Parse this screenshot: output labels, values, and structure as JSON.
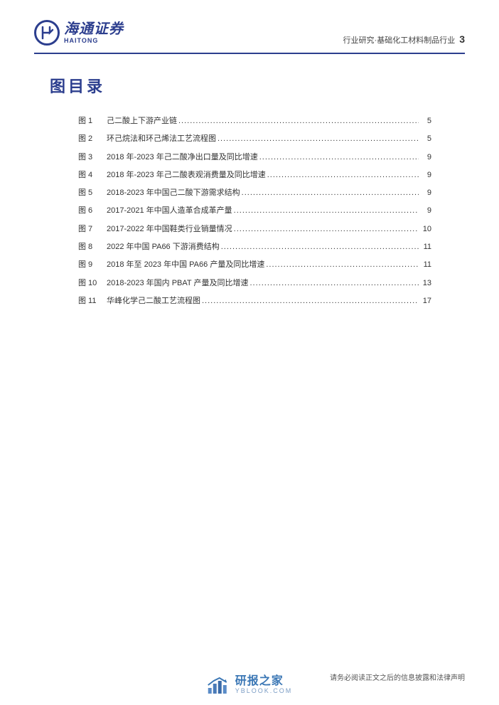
{
  "header": {
    "logo_cn": "海通证券",
    "logo_en": "HAITONG",
    "category": "行业研究·基础化工材料制品行业",
    "page_number": "3"
  },
  "title": "图目录",
  "toc": [
    {
      "label": "图 1",
      "title": "己二酸上下游产业链",
      "page": "5"
    },
    {
      "label": "图 2",
      "title": "环己烷法和环己烯法工艺流程图",
      "page": "5"
    },
    {
      "label": "图 3",
      "title": "2018 年-2023 年己二酸净出口量及同比增速",
      "page": "9"
    },
    {
      "label": "图 4",
      "title": "2018 年-2023 年己二酸表观消费量及同比增速",
      "page": "9"
    },
    {
      "label": "图 5",
      "title": "2018-2023 年中国己二酸下游需求结构",
      "page": "9"
    },
    {
      "label": "图 6",
      "title": "2017-2021 年中国人造革合成革产量",
      "page": "9"
    },
    {
      "label": "图 7",
      "title": "2017-2022 年中国鞋类行业销量情况",
      "page": "10"
    },
    {
      "label": "图 8",
      "title": "2022 年中国 PA66 下游消费结构",
      "page": "11"
    },
    {
      "label": "图 9",
      "title": "2018 年至 2023 年中国 PA66 产量及同比增速",
      "page": "11"
    },
    {
      "label": "图 10",
      "title": "2018-2023 年国内 PBAT 产量及同比增速",
      "page": "13"
    },
    {
      "label": "图 11",
      "title": "华峰化学己二酸工艺流程图",
      "page": "17"
    }
  ],
  "footer": {
    "disclaimer": "请务必阅读正文之后的信息披露和法律声明"
  },
  "watermark": {
    "cn": "研报之家",
    "en": "YBLOOK.COM"
  },
  "colors": {
    "brand_blue": "#2c3e8e",
    "text": "#333333",
    "wm_blue": "#3b77b5",
    "wm_light": "#7a9cc4",
    "background": "#ffffff"
  }
}
